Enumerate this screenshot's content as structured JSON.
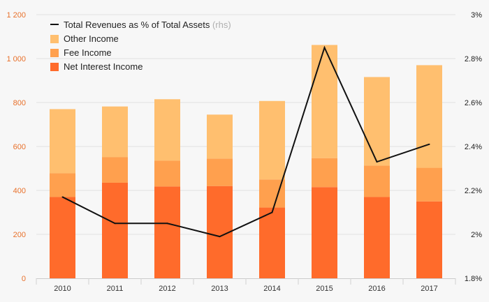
{
  "chart_data": {
    "type": "bar",
    "stacked": true,
    "categories": [
      "2010",
      "2011",
      "2012",
      "2013",
      "2014",
      "2015",
      "2016",
      "2017"
    ],
    "series": [
      {
        "name": "Net Interest Income",
        "values": [
          370,
          435,
          418,
          420,
          322,
          415,
          370,
          350
        ],
        "color": "#ff6b2b"
      },
      {
        "name": "Fee Income",
        "values": [
          108,
          117,
          117,
          125,
          128,
          132,
          143,
          153
        ],
        "color": "#ffa04e"
      },
      {
        "name": "Other Income",
        "values": [
          292,
          230,
          280,
          200,
          357,
          515,
          403,
          467
        ],
        "color": "#ffbf6f"
      }
    ],
    "line_series": {
      "name": "Total Revenues as % of Total Assets",
      "name_suffix": "(rhs)",
      "axis": "right",
      "values": [
        2.17,
        2.05,
        2.05,
        1.99,
        2.1,
        2.85,
        2.33,
        2.41
      ],
      "color": "#111111"
    },
    "y_left": {
      "ylim": [
        0,
        1200
      ],
      "ticks": [
        0,
        200,
        400,
        600,
        800,
        1000,
        1200
      ],
      "tick_labels": [
        "0",
        "200",
        "400",
        "600",
        "800",
        "1 000",
        "1 200"
      ],
      "color": "#e8702a"
    },
    "y_right": {
      "ylim": [
        1.8,
        3.0
      ],
      "ticks": [
        1.8,
        2.0,
        2.2,
        2.4,
        2.6,
        2.8,
        3.0
      ],
      "tick_labels": [
        "1.8%",
        "2%",
        "2.2%",
        "2.4%",
        "2.6%",
        "2.8%",
        "3%"
      ]
    },
    "grid": true,
    "legend": {
      "placement": "top-left",
      "items": [
        "Total Revenues as % of Total Assets",
        "Other Income",
        "Fee Income",
        "Net Interest Income"
      ]
    },
    "title": "",
    "xlabel": "",
    "ylabel": ""
  }
}
